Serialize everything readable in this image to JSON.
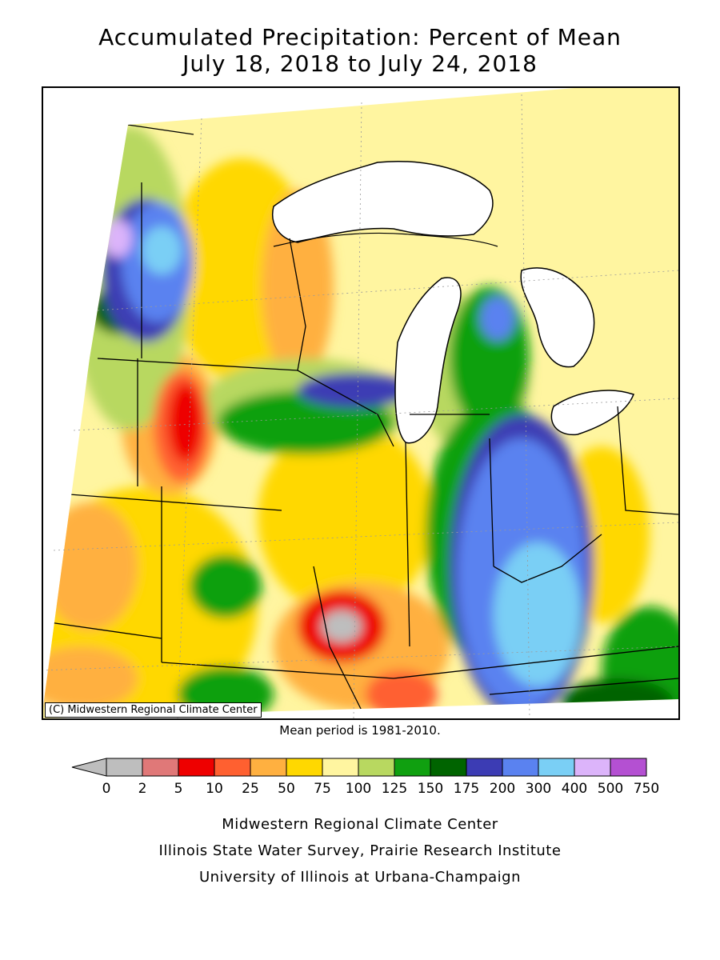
{
  "title": {
    "line1": "Accumulated Precipitation: Percent of Mean",
    "line2": "July 18, 2018 to July 24, 2018"
  },
  "map": {
    "copyright": "(C) Midwestern Regional Climate Center",
    "region": "Upper Midwest / Great Lakes"
  },
  "mean_note": "Mean period is 1981-2010.",
  "legend": {
    "ticks": [
      "0",
      "2",
      "5",
      "10",
      "25",
      "50",
      "75",
      "100",
      "125",
      "150",
      "175",
      "200",
      "300",
      "400",
      "500",
      "750"
    ],
    "colors": [
      "#bebebe",
      "#e07878",
      "#ee0000",
      "#ff6030",
      "#ffb040",
      "#ffd800",
      "#fff5a0",
      "#b8d860",
      "#10a010",
      "#006400",
      "#3c3cb4",
      "#5a82f0",
      "#7acff5",
      "#dcb4fa",
      "#b450d2"
    ]
  },
  "colors": {
    "lake": "#ffffff",
    "outside": "#ffffff"
  },
  "credits": {
    "line1": "Midwestern Regional Climate Center",
    "line2": "Illinois State Water Survey, Prairie Research Institute",
    "line3": "University of Illinois at Urbana-Champaign"
  }
}
